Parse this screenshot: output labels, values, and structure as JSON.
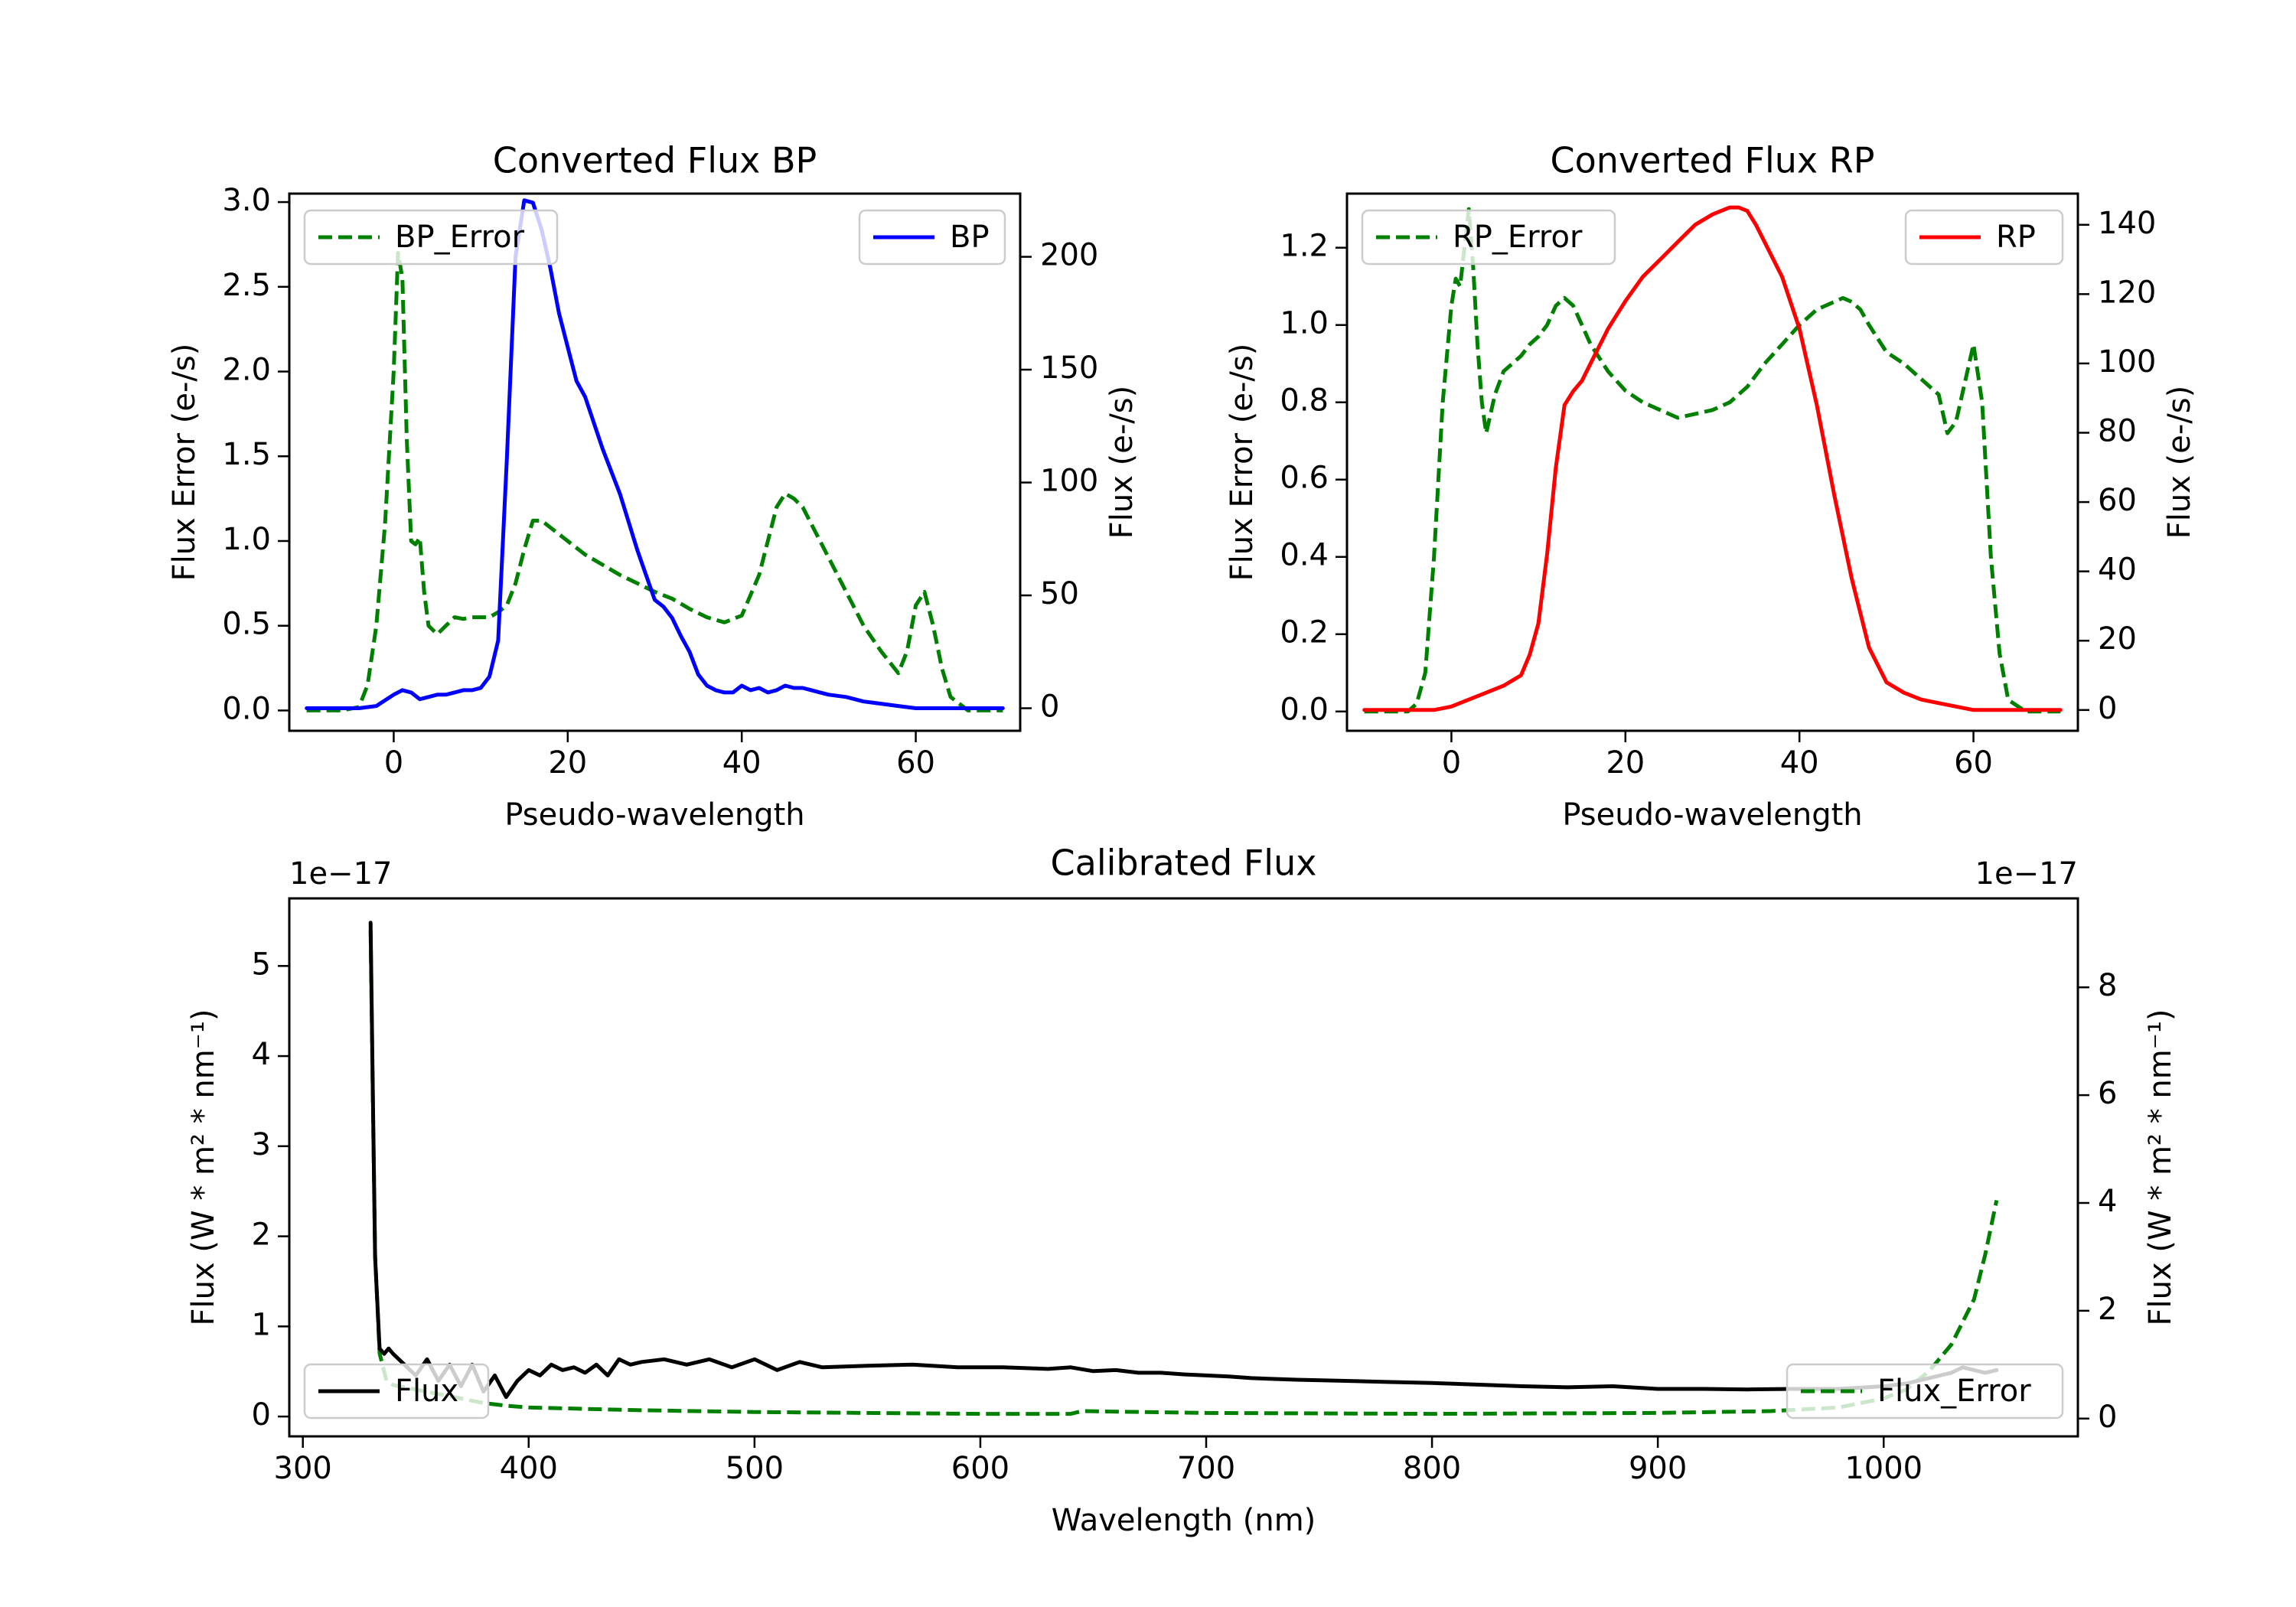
{
  "figure": {
    "title_bp": "Converted Flux BP",
    "title_rp": "Converted Flux RP",
    "title_cal": "Calibrated Flux"
  },
  "chart_data": [
    {
      "type": "line",
      "title": "Converted Flux BP",
      "xlabel": "Pseudo-wavelength",
      "ylabel_left": "Flux Error (e-/s)",
      "ylabel_right": "Flux (e-/s)",
      "xlim": [
        -12,
        72
      ],
      "ylim_left": [
        -0.12,
        3.05
      ],
      "ylim_right": [
        -10,
        228
      ],
      "x_ticks": [
        0,
        20,
        40,
        60
      ],
      "y_ticks_left": [
        "0.0",
        "0.5",
        "1.0",
        "1.5",
        "2.0",
        "2.5",
        "3.0"
      ],
      "y_ticks_right": [
        "0",
        "50",
        "100",
        "150",
        "200"
      ],
      "left_color": "#008000",
      "right_color": "#0000ff",
      "legend_left": "BP_Error",
      "legend_right": "BP",
      "series": [
        {
          "name": "BP_Error",
          "axis": "left",
          "style": "dashed",
          "color": "#008000",
          "x": [
            -10,
            -6,
            -4,
            -3,
            -2,
            -1,
            0,
            0.5,
            1,
            1.5,
            2,
            2.5,
            3,
            3.5,
            4,
            5,
            6,
            7,
            8,
            9,
            10,
            11,
            12,
            13,
            14,
            15,
            16,
            17,
            18,
            20,
            22,
            24,
            26,
            28,
            30,
            32,
            34,
            36,
            38,
            40,
            42,
            43,
            44,
            45,
            46,
            47,
            48,
            50,
            52,
            54,
            56,
            58,
            59,
            60,
            61,
            62,
            63,
            64,
            66,
            70
          ],
          "values": [
            0,
            0,
            0.02,
            0.15,
            0.5,
            1.1,
            2.0,
            2.7,
            2.55,
            1.6,
            1.0,
            0.98,
            1.02,
            0.7,
            0.5,
            0.45,
            0.5,
            0.55,
            0.54,
            0.55,
            0.55,
            0.55,
            0.58,
            0.62,
            0.75,
            0.95,
            1.12,
            1.12,
            1.08,
            1.0,
            0.92,
            0.86,
            0.8,
            0.75,
            0.7,
            0.66,
            0.6,
            0.55,
            0.52,
            0.56,
            0.8,
            1.0,
            1.2,
            1.28,
            1.25,
            1.2,
            1.1,
            0.9,
            0.7,
            0.5,
            0.35,
            0.22,
            0.35,
            0.62,
            0.7,
            0.5,
            0.25,
            0.08,
            0,
            0
          ]
        },
        {
          "name": "BP",
          "axis": "right",
          "style": "solid",
          "color": "#0000ff",
          "x": [
            -10,
            -4,
            -2,
            0,
            1,
            2,
            3,
            4,
            5,
            6,
            7,
            8,
            9,
            10,
            11,
            12,
            13,
            14,
            15,
            16,
            17,
            18,
            19,
            20,
            21,
            22,
            24,
            26,
            28,
            30,
            31,
            32,
            33,
            34,
            35,
            36,
            37,
            38,
            39,
            40,
            41,
            42,
            43,
            44,
            45,
            46,
            47,
            48,
            49,
            50,
            52,
            54,
            56,
            58,
            60,
            62,
            64,
            66,
            68,
            70
          ],
          "values": [
            0,
            0,
            1,
            6,
            8,
            7,
            4,
            5,
            6,
            6,
            7,
            8,
            8,
            9,
            14,
            30,
            110,
            200,
            225,
            224,
            212,
            195,
            175,
            160,
            145,
            138,
            115,
            95,
            70,
            48,
            45,
            40,
            32,
            25,
            15,
            10,
            8,
            7,
            7,
            10,
            8,
            9,
            7,
            8,
            10,
            9,
            9,
            8,
            7,
            6,
            5,
            3,
            2,
            1,
            0,
            0,
            0,
            0,
            0,
            0
          ]
        }
      ]
    },
    {
      "type": "line",
      "title": "Converted Flux RP",
      "xlabel": "Pseudo-wavelength",
      "ylabel_left": "Flux Error (e-/s)",
      "ylabel_right": "Flux (e-/s)",
      "xlim": [
        -12,
        72
      ],
      "ylim_left": [
        -0.05,
        1.34
      ],
      "ylim_right": [
        -6,
        149
      ],
      "x_ticks": [
        0,
        20,
        40,
        60
      ],
      "y_ticks_left": [
        "0.0",
        "0.2",
        "0.4",
        "0.6",
        "0.8",
        "1.0",
        "1.2"
      ],
      "y_ticks_right": [
        "0",
        "20",
        "40",
        "60",
        "80",
        "100",
        "120",
        "140"
      ],
      "left_color": "#008000",
      "right_color": "#ff0000",
      "legend_left": "RP_Error",
      "legend_right": "RP",
      "series": [
        {
          "name": "RP_Error",
          "axis": "left",
          "style": "dashed",
          "color": "#008000",
          "x": [
            -10,
            -5,
            -4,
            -3,
            -2,
            -1,
            0,
            0.5,
            1,
            1.5,
            2,
            2.5,
            3,
            3.5,
            4,
            5,
            6,
            7,
            8,
            9,
            10,
            11,
            12,
            13,
            14,
            15,
            16,
            18,
            20,
            22,
            24,
            26,
            28,
            30,
            32,
            34,
            36,
            38,
            40,
            42,
            44,
            45,
            46,
            47,
            48,
            50,
            52,
            54,
            55,
            56,
            57,
            58,
            59,
            60,
            61,
            62,
            63,
            64,
            66,
            70
          ],
          "values": [
            0,
            0,
            0.02,
            0.1,
            0.4,
            0.8,
            1.05,
            1.12,
            1.1,
            1.2,
            1.3,
            1.15,
            0.95,
            0.8,
            0.72,
            0.82,
            0.88,
            0.9,
            0.92,
            0.95,
            0.97,
            1.0,
            1.05,
            1.07,
            1.05,
            1.0,
            0.95,
            0.88,
            0.83,
            0.8,
            0.78,
            0.76,
            0.77,
            0.78,
            0.8,
            0.84,
            0.9,
            0.95,
            1.0,
            1.04,
            1.06,
            1.07,
            1.06,
            1.04,
            1.0,
            0.93,
            0.9,
            0.86,
            0.84,
            0.82,
            0.72,
            0.75,
            0.85,
            0.95,
            0.8,
            0.4,
            0.15,
            0.03,
            0,
            0
          ]
        },
        {
          "name": "RP",
          "axis": "right",
          "style": "solid",
          "color": "#ff0000",
          "x": [
            -10,
            -4,
            -2,
            0,
            2,
            4,
            6,
            8,
            9,
            10,
            11,
            12,
            13,
            14,
            15,
            16,
            18,
            20,
            22,
            24,
            26,
            28,
            30,
            31,
            32,
            33,
            34,
            35,
            36,
            38,
            40,
            42,
            44,
            46,
            48,
            50,
            52,
            54,
            56,
            58,
            60,
            62,
            64,
            66,
            70
          ],
          "values": [
            0,
            0,
            0,
            1,
            3,
            5,
            7,
            10,
            16,
            25,
            45,
            70,
            88,
            92,
            95,
            100,
            110,
            118,
            125,
            130,
            135,
            140,
            143,
            144,
            145,
            145,
            144,
            140,
            135,
            125,
            110,
            88,
            62,
            38,
            18,
            8,
            5,
            3,
            2,
            1,
            0,
            0,
            0,
            0,
            0
          ]
        }
      ]
    },
    {
      "type": "line",
      "title": "Calibrated Flux",
      "xlabel": "Wavelength (nm)",
      "ylabel_left": "Flux (W * m² * nm⁻¹)",
      "ylabel_right": "Flux (W * m² * nm⁻¹)",
      "offset_left": "1e−17",
      "offset_right": "1e−17",
      "xlim": [
        294,
        1086
      ],
      "ylim_left": [
        -0.22,
        5.75
      ],
      "ylim_right": [
        -0.33,
        9.65
      ],
      "x_ticks": [
        300,
        400,
        500,
        600,
        700,
        800,
        900,
        1000
      ],
      "y_ticks_left": [
        "0",
        "1",
        "2",
        "3",
        "4",
        "5"
      ],
      "y_ticks_right": [
        "0",
        "2",
        "4",
        "6",
        "8"
      ],
      "left_color": "#008000",
      "right_color": "#000000",
      "legend_left": "Flux",
      "legend_right": "Flux_Error",
      "series": [
        {
          "name": "Flux_Error",
          "axis": "left",
          "style": "dashed",
          "color": "#008000",
          "x": [
            330,
            331,
            332,
            334,
            337,
            340,
            350,
            360,
            370,
            380,
            390,
            400,
            450,
            500,
            550,
            600,
            640,
            645,
            700,
            800,
            900,
            950,
            980,
            1000,
            1010,
            1020,
            1030,
            1040,
            1045,
            1050
          ],
          "values": [
            5.4,
            3.5,
            1.8,
            0.7,
            0.4,
            0.35,
            0.3,
            0.25,
            0.2,
            0.15,
            0.12,
            0.1,
            0.07,
            0.05,
            0.04,
            0.03,
            0.03,
            0.06,
            0.04,
            0.03,
            0.04,
            0.06,
            0.1,
            0.2,
            0.3,
            0.5,
            0.8,
            1.3,
            1.8,
            2.4
          ]
        },
        {
          "name": "Flux",
          "axis": "right",
          "style": "solid",
          "color": "#000000",
          "x": [
            330,
            331,
            332,
            334,
            336,
            338,
            340,
            345,
            350,
            355,
            360,
            365,
            370,
            375,
            380,
            385,
            390,
            395,
            400,
            405,
            410,
            415,
            420,
            425,
            430,
            435,
            440,
            445,
            450,
            460,
            470,
            480,
            490,
            500,
            510,
            520,
            530,
            550,
            570,
            590,
            610,
            630,
            640,
            650,
            660,
            670,
            680,
            690,
            700,
            710,
            720,
            740,
            760,
            780,
            800,
            820,
            840,
            860,
            880,
            900,
            920,
            940,
            960,
            980,
            1000,
            1010,
            1020,
            1030,
            1035,
            1040,
            1045,
            1050
          ],
          "values": [
            9.2,
            6,
            3,
            1.3,
            1.2,
            1.3,
            1.2,
            1.0,
            0.8,
            1.1,
            0.7,
            1.0,
            0.6,
            1.0,
            0.5,
            0.8,
            0.4,
            0.7,
            0.9,
            0.8,
            1.0,
            0.9,
            0.95,
            0.85,
            1.0,
            0.8,
            1.1,
            1.0,
            1.05,
            1.1,
            1.0,
            1.1,
            0.95,
            1.1,
            0.9,
            1.05,
            0.95,
            0.98,
            1.0,
            0.95,
            0.95,
            0.92,
            0.95,
            0.88,
            0.9,
            0.85,
            0.85,
            0.82,
            0.8,
            0.78,
            0.75,
            0.72,
            0.7,
            0.68,
            0.66,
            0.63,
            0.6,
            0.58,
            0.6,
            0.55,
            0.55,
            0.54,
            0.55,
            0.55,
            0.6,
            0.65,
            0.75,
            0.85,
            0.95,
            0.9,
            0.85,
            0.9
          ]
        }
      ]
    }
  ]
}
